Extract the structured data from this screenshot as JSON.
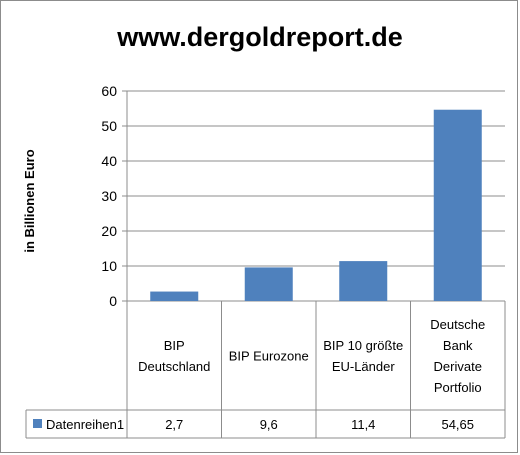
{
  "chart_data": {
    "type": "bar",
    "title": "www.dergoldreport.de",
    "ylabel": "in Billionen Euro",
    "xlabel": "",
    "ylim": [
      0,
      60
    ],
    "yticks": [
      0,
      10,
      20,
      30,
      40,
      50,
      60
    ],
    "grid": true,
    "categories": [
      [
        "BIP",
        "Deutschland"
      ],
      [
        "BIP Eurozone"
      ],
      [
        "BIP 10 größte",
        "EU-Länder"
      ],
      [
        "Deutsche",
        "Bank",
        "Derivate",
        "Portfolio"
      ]
    ],
    "series": [
      {
        "name": "Datenreihen1",
        "values": [
          2.7,
          9.6,
          11.4,
          54.65
        ],
        "value_labels": [
          "2,7",
          "9,6",
          "11,4",
          "54,65"
        ],
        "color": "#4f81bd"
      }
    ],
    "legend": "data-table-below"
  }
}
